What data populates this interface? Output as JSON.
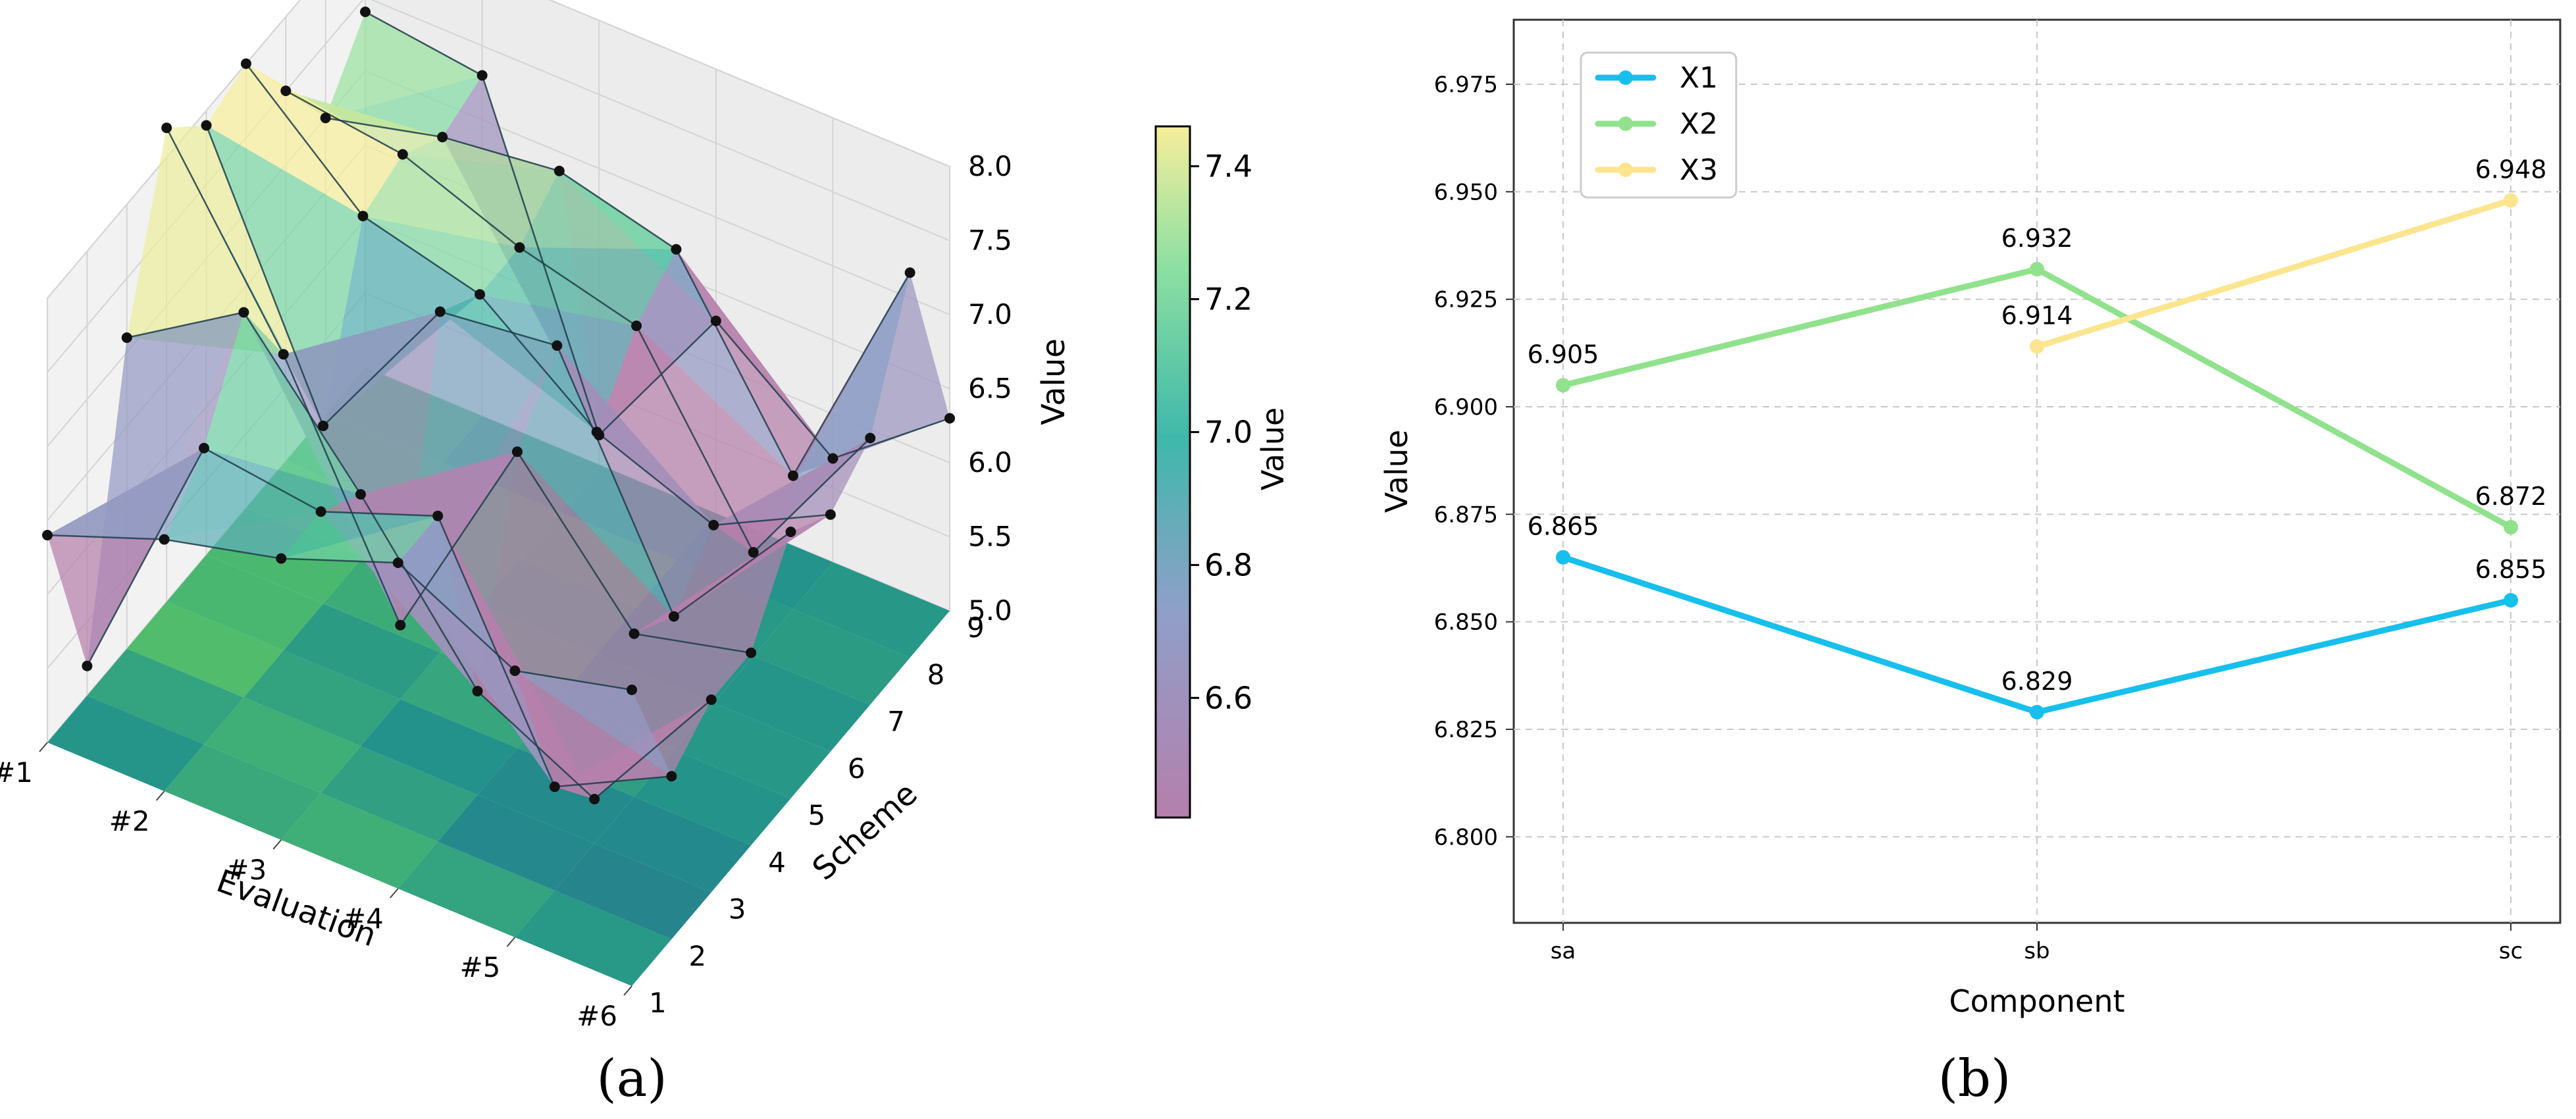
{
  "panel_labels": {
    "a": "(a)",
    "b": "(b)"
  },
  "chart_data": [
    {
      "type": "surface3d",
      "xlabel": "Evaluation",
      "ylabel": "Scheme",
      "zlabel": "Value",
      "x_ticks": [
        "#1",
        "#2",
        "#3",
        "#4",
        "#5",
        "#6"
      ],
      "y_ticks": [
        "1",
        "2",
        "3",
        "4",
        "5",
        "6",
        "7",
        "8",
        "9"
      ],
      "z_ticks": [
        "5.0",
        "5.5",
        "6.0",
        "6.5",
        "7.0",
        "7.5",
        "8.0"
      ],
      "zlim": [
        5.0,
        8.0
      ],
      "colormap": "viridis",
      "colorbar": {
        "label": "Value",
        "ticks": [
          "6.6",
          "6.8",
          "7.0",
          "7.2",
          "7.4"
        ],
        "range": [
          6.42,
          7.46
        ]
      },
      "grid": true,
      "values": [
        [
          6.4,
          6.7,
          6.9,
          7.2,
          6.8,
          7.0
        ],
        [
          5.2,
          7.0,
          6.9,
          7.2,
          5.7,
          6.1
        ],
        [
          7.1,
          7.6,
          6.7,
          5.7,
          5.3,
          6.3
        ],
        [
          8.2,
          7.0,
          5.5,
          7.0,
          6.1,
          6.3
        ],
        [
          7.9,
          6.2,
          7.3,
          7.4,
          5.9,
          6.8
        ],
        [
          8.0,
          7.3,
          7.1,
          6.5,
          6.2,
          6.6
        ],
        [
          7.5,
          7.4,
          7.1,
          6.9,
          5.7,
          6.8
        ],
        [
          7.0,
          7.2,
          7.3,
          7.1,
          5.9,
          7.6
        ],
        [
          7.4,
          7.3,
          5.2,
          6.3,
          5.7,
          6.3
        ]
      ]
    },
    {
      "type": "line",
      "xlabel": "Component",
      "ylabel": "Value",
      "categories": [
        "sa",
        "sb",
        "sc"
      ],
      "ylim": [
        6.78,
        6.99
      ],
      "y_ticks": [
        "6.800",
        "6.825",
        "6.850",
        "6.875",
        "6.900",
        "6.925",
        "6.950",
        "6.975"
      ],
      "grid": true,
      "legend": "top-left",
      "series": [
        {
          "name": "X1",
          "color": "#17bfec",
          "values": [
            6.865,
            6.829,
            6.855
          ],
          "labels": [
            "6.865",
            "6.829",
            "6.855"
          ]
        },
        {
          "name": "X2",
          "color": "#90e28c",
          "values": [
            6.905,
            6.932,
            6.872
          ],
          "labels": [
            "6.905",
            "6.932",
            "6.872"
          ]
        },
        {
          "name": "X3",
          "color": "#fbe58e",
          "values": [
            null,
            6.914,
            6.948
          ],
          "labels": [
            "",
            "6.914",
            "6.948"
          ]
        }
      ]
    }
  ]
}
